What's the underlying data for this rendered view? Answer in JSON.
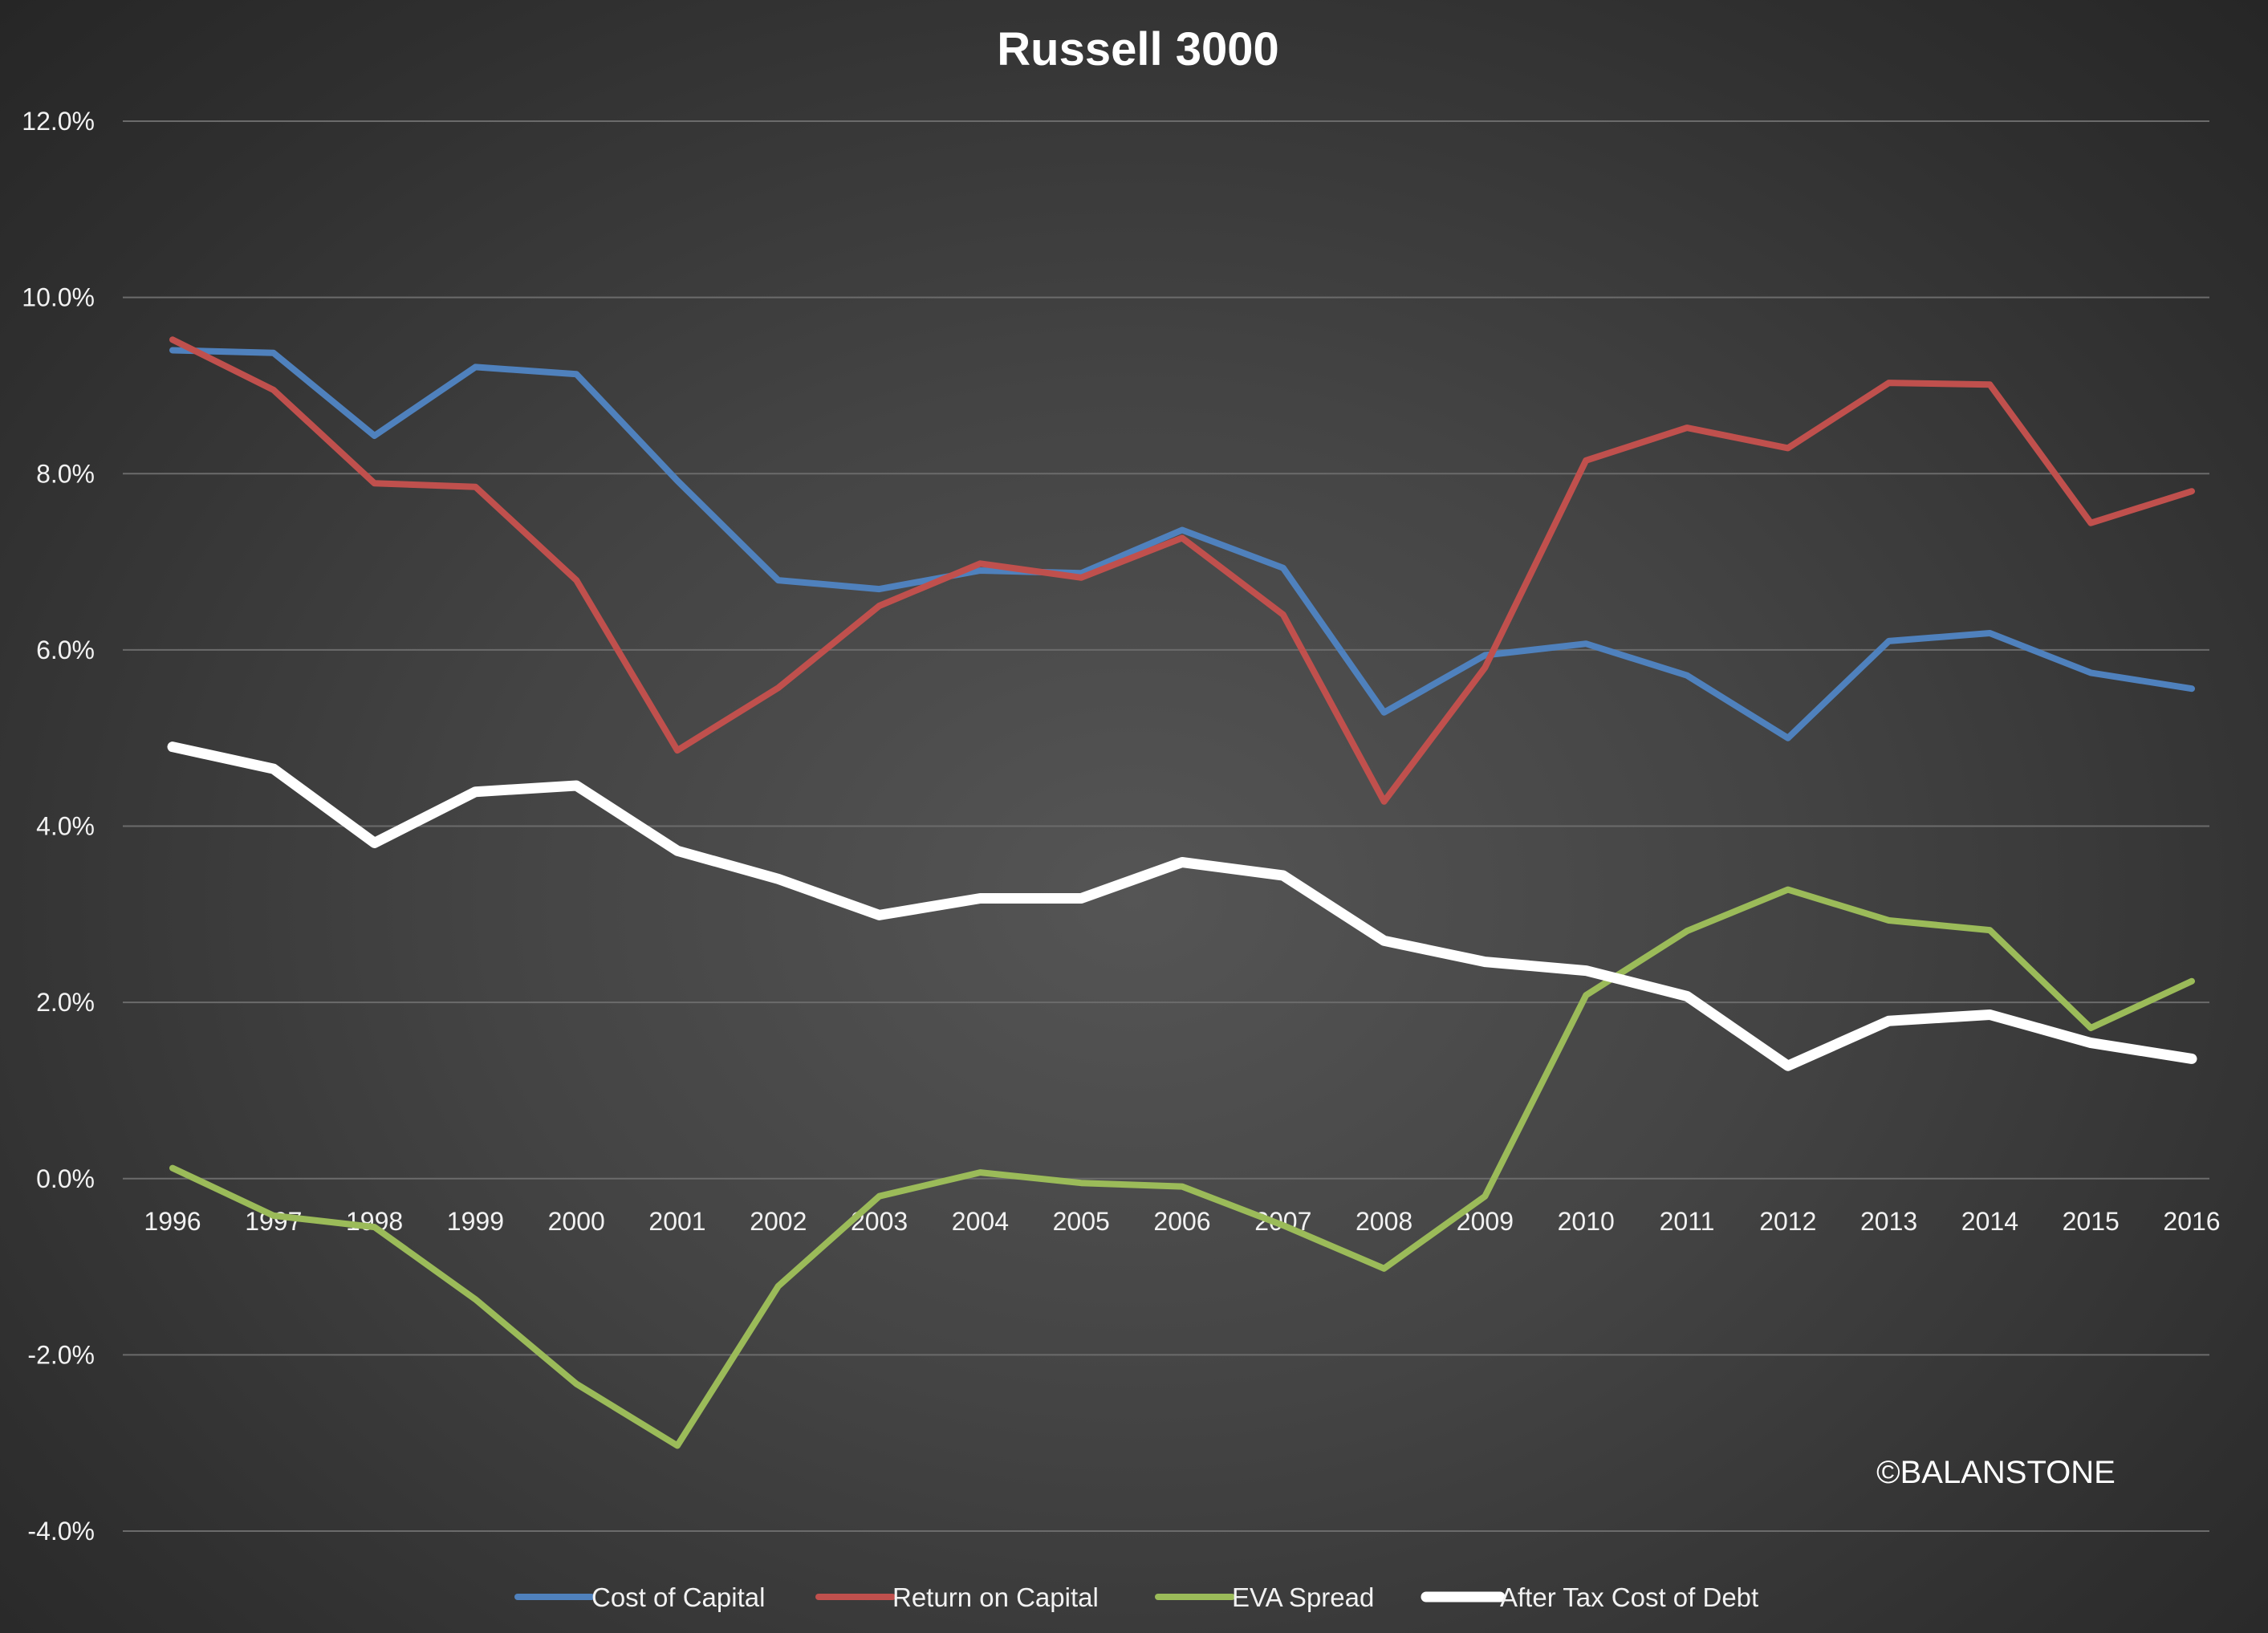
{
  "chart_data": {
    "type": "line",
    "title": "Russell 3000",
    "xlabel": "",
    "ylabel": "",
    "ylim": [
      -0.04,
      0.12
    ],
    "y_ticks": [
      "12.0%",
      "10.0%",
      "8.0%",
      "6.0%",
      "4.0%",
      "2.0%",
      "0.0%",
      "-2.0%",
      "-4.0%"
    ],
    "y_tick_values": [
      0.12,
      0.1,
      0.08,
      0.06,
      0.04,
      0.02,
      0.0,
      -0.02,
      -0.04
    ],
    "grid": true,
    "legend_position": "bottom",
    "categories": [
      "1996",
      "1997",
      "1998",
      "1999",
      "2000",
      "2001",
      "2002",
      "2003",
      "2004",
      "2005",
      "2006",
      "2007",
      "2008",
      "2009",
      "2010",
      "2011",
      "2012",
      "2013",
      "2014",
      "2015",
      "2016"
    ],
    "series": [
      {
        "name": "Cost of Capital",
        "color": "#4f81bd",
        "values": [
          0.094,
          0.0937,
          0.0843,
          0.0921,
          0.0913,
          0.0792,
          0.0679,
          0.0669,
          0.069,
          0.0687,
          0.0736,
          0.0693,
          0.0529,
          0.0594,
          0.0607,
          0.0571,
          0.05,
          0.061,
          0.0619,
          0.0574,
          0.0556
        ]
      },
      {
        "name": "Return on Capital",
        "color": "#c0504d",
        "values": [
          0.0952,
          0.0895,
          0.0789,
          0.0785,
          0.0679,
          0.0486,
          0.0557,
          0.065,
          0.0698,
          0.0682,
          0.0727,
          0.064,
          0.0428,
          0.058,
          0.0815,
          0.0852,
          0.0829,
          0.0903,
          0.0901,
          0.0744,
          0.078
        ]
      },
      {
        "name": "EVA Spread",
        "color": "#9bbb59",
        "values": [
          0.0012,
          -0.0042,
          -0.0055,
          -0.0137,
          -0.0233,
          -0.0303,
          -0.0122,
          -0.002,
          0.0007,
          -0.0005,
          -0.0009,
          -0.0053,
          -0.0102,
          -0.002,
          0.0208,
          0.0281,
          0.0328,
          0.0293,
          0.0282,
          0.0171,
          0.0224
        ]
      },
      {
        "name": "After Tax Cost of Debt",
        "color": "#ffffff",
        "values": [
          0.049,
          0.0465,
          0.0381,
          0.0439,
          0.0446,
          0.0372,
          0.034,
          0.0299,
          0.0318,
          0.0318,
          0.0359,
          0.0344,
          0.027,
          0.0246,
          0.0236,
          0.0207,
          0.0128,
          0.0179,
          0.0186,
          0.0154,
          0.0136
        ]
      }
    ]
  },
  "watermark": "©BALANSTONE"
}
